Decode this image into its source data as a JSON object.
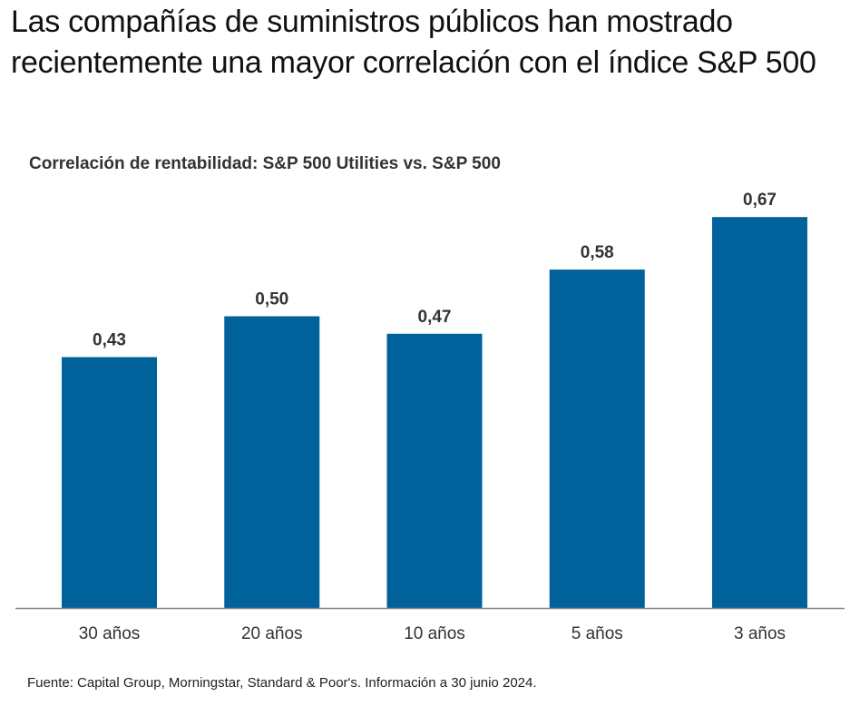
{
  "title": "Las compañías de suministros públicos han mostrado recientemente una mayor correlación con el índice S&P 500",
  "source": "Fuente: Capital Group, Morningstar, Standard & Poor's. Información a 30 junio 2024.",
  "colors": {
    "bar": "#00619b",
    "axis": "#888888",
    "label": "#333333"
  },
  "chart_data": {
    "type": "bar",
    "title": "Correlación de rentabilidad: S&P 500 Utilities vs. S&P 500",
    "xlabel": "",
    "ylabel": "",
    "categories": [
      "30 años",
      "20 años",
      "10 años",
      "5 años",
      "3 años"
    ],
    "values": [
      0.43,
      0.5,
      0.47,
      0.58,
      0.67
    ],
    "data_labels": [
      "0,43",
      "0,50",
      "0,47",
      "0,58",
      "0,67"
    ],
    "ylim": [
      0,
      0.67
    ],
    "grid": false,
    "legend": "none"
  }
}
